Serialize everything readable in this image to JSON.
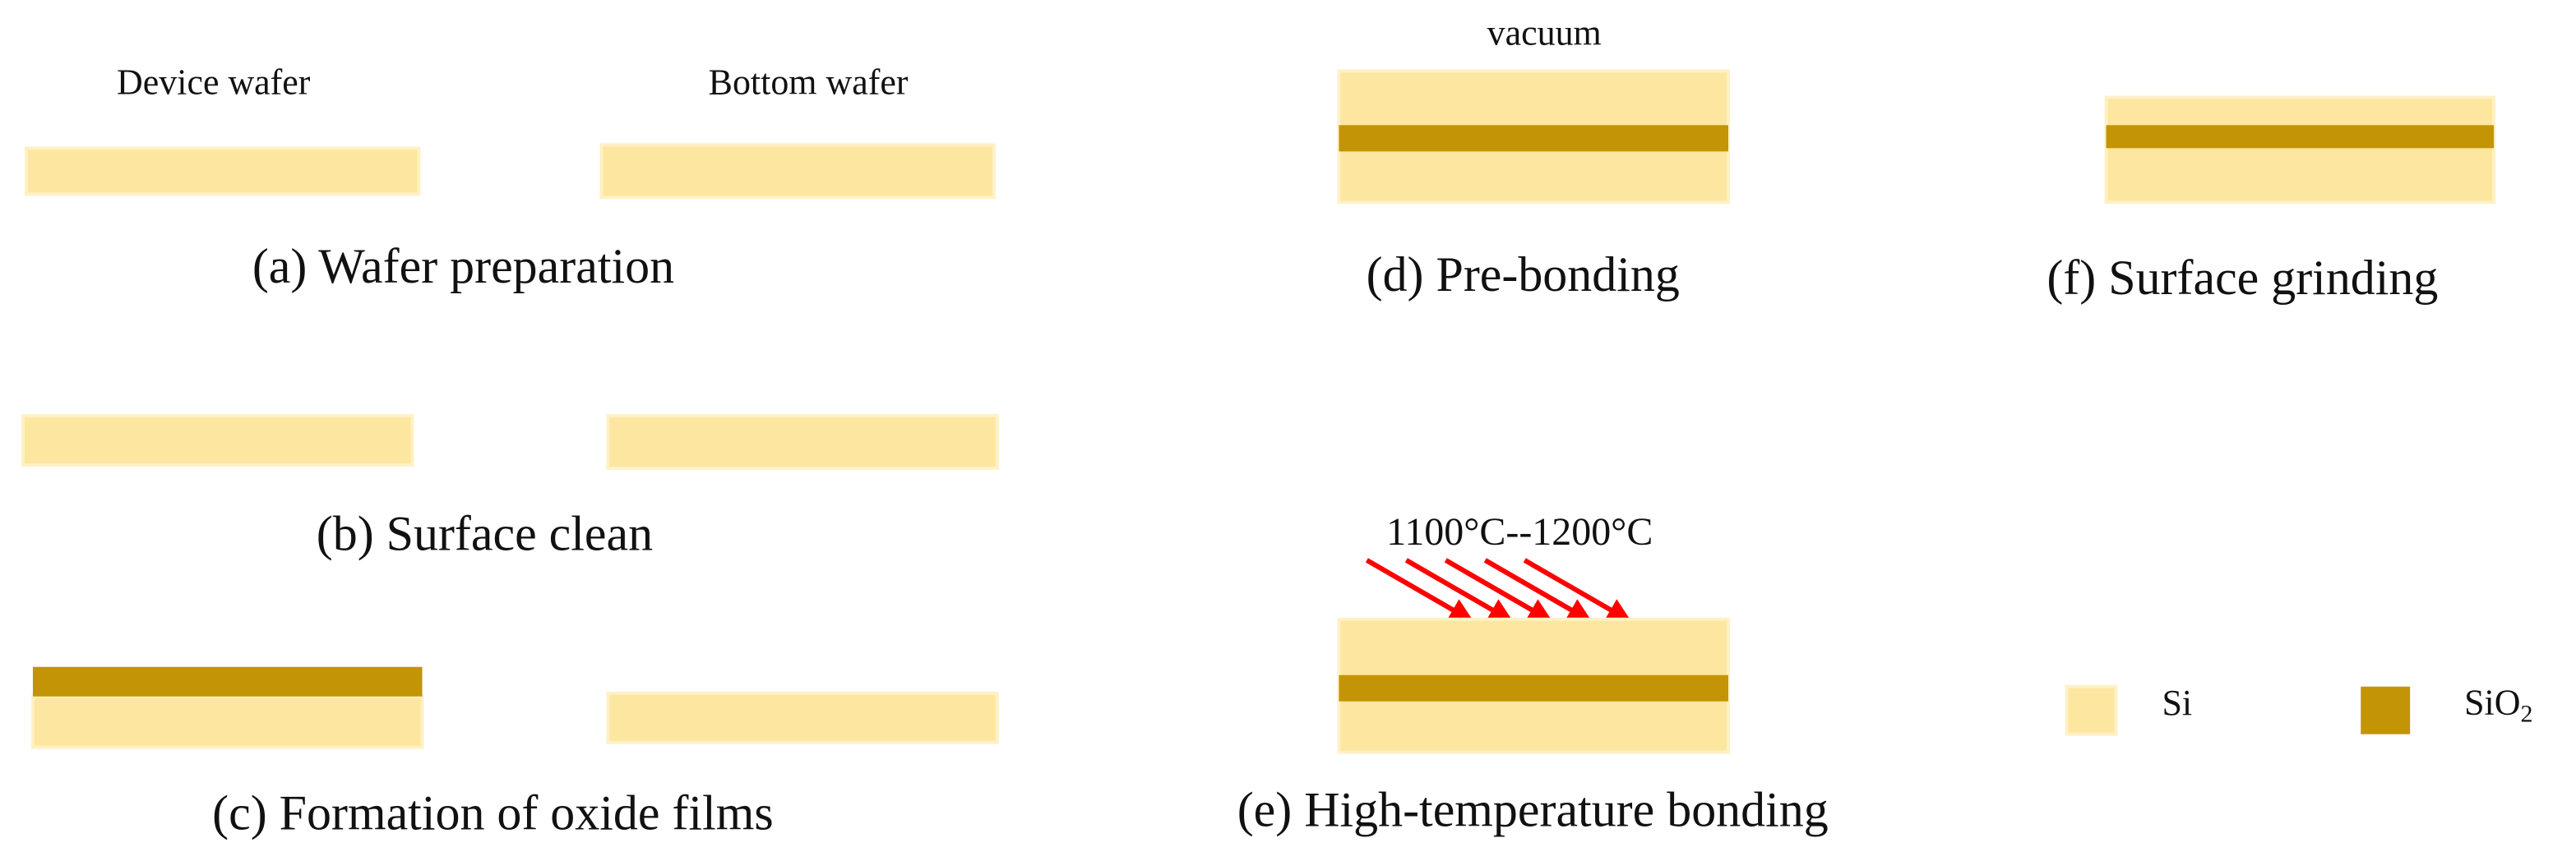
{
  "panels": {
    "a": {
      "left_label": "Device wafer",
      "right_label": "Bottom wafer",
      "caption": "(a) Wafer preparation"
    },
    "b": {
      "caption": "(b) Surface clean"
    },
    "c": {
      "caption": "(c) Formation of oxide films"
    },
    "d": {
      "label": "vacuum",
      "caption": "(d) Pre-bonding"
    },
    "e": {
      "label": "1100°C--1200°C",
      "caption": "(e) High-temperature bonding"
    },
    "f": {
      "caption": "(f) Surface grinding"
    }
  },
  "legend": {
    "si": "Si",
    "sio2": {
      "text": "SiO",
      "subscript": "2"
    }
  }
}
